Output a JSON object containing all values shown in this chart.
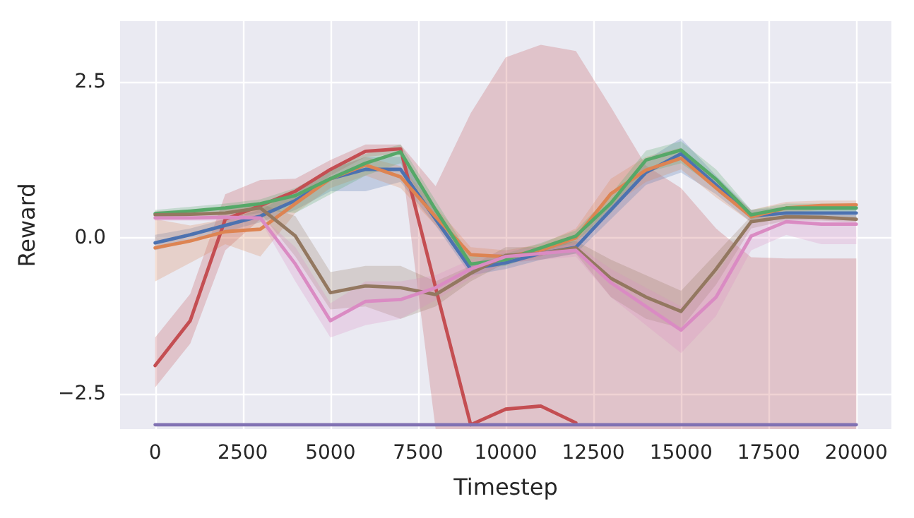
{
  "chart_data": {
    "type": "line",
    "xlabel": "Timestep",
    "ylabel": "Reward",
    "x": [
      0,
      1000,
      2000,
      3000,
      4000,
      5000,
      6000,
      7000,
      8000,
      9000,
      10000,
      11000,
      12000,
      13000,
      14000,
      15000,
      16000,
      17000,
      18000,
      19000,
      20000
    ],
    "xlim": [
      -1000,
      21000
    ],
    "xticks": [
      0,
      2500,
      5000,
      7500,
      10000,
      12500,
      15000,
      17500,
      20000
    ],
    "ylim": [
      -3.07,
      3.48
    ],
    "yticks": [
      {
        "value": -2.5,
        "label": "−2.5"
      },
      {
        "value": 0,
        "label": "0.0"
      },
      {
        "value": 2.5,
        "label": "2.5"
      }
    ],
    "grid": true,
    "marker": "none",
    "line_style": "solid",
    "series": [
      {
        "color": "#c44e52",
        "values": [
          -2.05,
          -1.33,
          0.3,
          0.52,
          0.75,
          1.1,
          1.39,
          1.43,
          -0.8,
          -3.0,
          -2.75,
          -2.7,
          -2.97,
          null,
          null,
          null,
          null,
          null,
          null,
          null,
          null
        ],
        "lower": [
          -2.4,
          -1.7,
          -0.2,
          0.3,
          0.6,
          1.0,
          1.3,
          1.35,
          -3.07,
          -3.07,
          -3.07,
          -3.07,
          -3.07,
          -3.07,
          -3.07,
          -3.07,
          -3.07,
          -3.07,
          -3.07,
          -3.07,
          -3.07
        ],
        "upper": [
          -1.6,
          -0.9,
          0.7,
          0.93,
          0.95,
          1.25,
          1.5,
          1.5,
          0.83,
          2.0,
          2.9,
          3.1,
          3.0,
          2.1,
          1.16,
          0.8,
          0.15,
          -0.31,
          -0.33,
          -0.33,
          -0.33
        ]
      },
      {
        "color": "#4c72b0",
        "values": [
          -0.08,
          0.05,
          0.2,
          0.35,
          0.6,
          0.95,
          1.1,
          1.1,
          0.3,
          -0.5,
          -0.4,
          -0.25,
          -0.15,
          0.45,
          1.05,
          1.35,
          0.85,
          0.35,
          0.4,
          0.4,
          0.4
        ],
        "lower": [
          -0.2,
          -0.05,
          0.1,
          0.25,
          0.45,
          0.75,
          0.75,
          0.9,
          0.2,
          -0.6,
          -0.5,
          -0.35,
          -0.25,
          0.3,
          0.85,
          1.05,
          0.7,
          0.25,
          0.3,
          0.3,
          0.3
        ],
        "upper": [
          0.05,
          0.15,
          0.3,
          0.45,
          0.75,
          1.1,
          1.3,
          1.3,
          0.45,
          -0.4,
          -0.3,
          -0.15,
          -0.05,
          0.6,
          1.25,
          1.6,
          1.0,
          0.45,
          0.5,
          0.5,
          0.5
        ]
      },
      {
        "color": "#dd8452",
        "values": [
          -0.16,
          -0.05,
          0.1,
          0.14,
          0.55,
          0.95,
          1.17,
          0.98,
          0.34,
          -0.27,
          -0.3,
          -0.2,
          0.0,
          0.71,
          1.09,
          1.28,
          0.8,
          0.34,
          0.48,
          0.52,
          0.53
        ],
        "lower": [
          -0.7,
          -0.4,
          -0.1,
          -0.3,
          0.4,
          0.8,
          1.0,
          0.8,
          0.2,
          -0.4,
          -0.4,
          -0.3,
          -0.1,
          0.5,
          0.9,
          1.1,
          0.65,
          0.25,
          0.4,
          0.45,
          0.45
        ],
        "upper": [
          0.3,
          0.2,
          0.3,
          0.5,
          0.7,
          1.1,
          1.3,
          1.15,
          0.5,
          -0.15,
          -0.2,
          -0.1,
          0.15,
          0.95,
          1.3,
          1.45,
          0.95,
          0.45,
          0.58,
          0.6,
          0.6
        ]
      },
      {
        "color": "#55a868",
        "values": [
          0.39,
          0.43,
          0.48,
          0.55,
          0.68,
          0.95,
          1.2,
          1.38,
          0.45,
          -0.42,
          -0.35,
          -0.16,
          0.03,
          0.56,
          1.25,
          1.41,
          0.94,
          0.37,
          0.48,
          0.48,
          0.48
        ],
        "lower": [
          0.3,
          0.35,
          0.4,
          0.45,
          0.4,
          0.7,
          1.0,
          1.2,
          0.3,
          -0.5,
          -0.45,
          -0.25,
          -0.05,
          0.4,
          1.05,
          1.2,
          0.8,
          0.3,
          0.42,
          0.42,
          0.42
        ],
        "upper": [
          0.45,
          0.5,
          0.55,
          0.62,
          0.8,
          1.1,
          1.35,
          1.5,
          0.6,
          -0.3,
          -0.25,
          -0.08,
          0.12,
          0.7,
          1.4,
          1.55,
          1.1,
          0.45,
          0.55,
          0.55,
          0.55
        ]
      },
      {
        "color": "#937860",
        "values": [
          0.37,
          0.38,
          0.4,
          0.48,
          0.03,
          -0.88,
          -0.77,
          -0.8,
          -0.91,
          -0.57,
          -0.28,
          -0.25,
          -0.16,
          -0.65,
          -0.95,
          -1.18,
          -0.5,
          0.26,
          0.34,
          0.33,
          0.3
        ],
        "lower": [
          0.3,
          0.3,
          0.32,
          0.4,
          -0.3,
          -1.15,
          -1.1,
          -1.3,
          -1.1,
          -0.7,
          -0.4,
          -0.35,
          -0.25,
          -0.95,
          -1.3,
          -1.45,
          -0.75,
          0.15,
          0.28,
          0.28,
          0.25
        ],
        "upper": [
          0.43,
          0.45,
          0.48,
          0.55,
          0.35,
          -0.55,
          -0.45,
          -0.45,
          -0.7,
          -0.45,
          -0.15,
          -0.15,
          -0.05,
          -0.35,
          -0.6,
          -0.85,
          -0.25,
          0.35,
          0.4,
          0.38,
          0.36
        ]
      },
      {
        "color": "#da8bc3",
        "values": [
          0.32,
          0.32,
          0.33,
          0.32,
          -0.42,
          -1.33,
          -1.02,
          -0.99,
          -0.8,
          -0.5,
          -0.3,
          -0.25,
          -0.2,
          -0.72,
          -1.1,
          -1.48,
          -0.95,
          0.03,
          0.26,
          0.22,
          0.22
        ],
        "lower": [
          0.28,
          0.28,
          0.28,
          0.28,
          -0.7,
          -1.6,
          -1.4,
          -1.3,
          -1.0,
          -0.65,
          -0.4,
          -0.35,
          -0.3,
          -0.95,
          -1.4,
          -1.85,
          -1.25,
          -0.2,
          0.05,
          -0.1,
          -0.1
        ],
        "upper": [
          0.36,
          0.36,
          0.37,
          0.36,
          -0.15,
          -1.05,
          -0.7,
          -0.7,
          -0.6,
          -0.35,
          -0.2,
          -0.15,
          -0.1,
          -0.5,
          -0.8,
          -1.1,
          -0.6,
          0.25,
          0.35,
          0.3,
          0.3
        ]
      },
      {
        "color": "#8172b3",
        "values": [
          -3.0,
          -3.0,
          -3.0,
          -3.0,
          -3.0,
          -3.0,
          -3.0,
          -3.0,
          -3.0,
          -3.0,
          -3.0,
          -3.0,
          -3.0,
          -3.0,
          -3.0,
          -3.0,
          -3.0,
          -3.0,
          -3.0,
          -3.0,
          -3.0
        ]
      }
    ]
  }
}
